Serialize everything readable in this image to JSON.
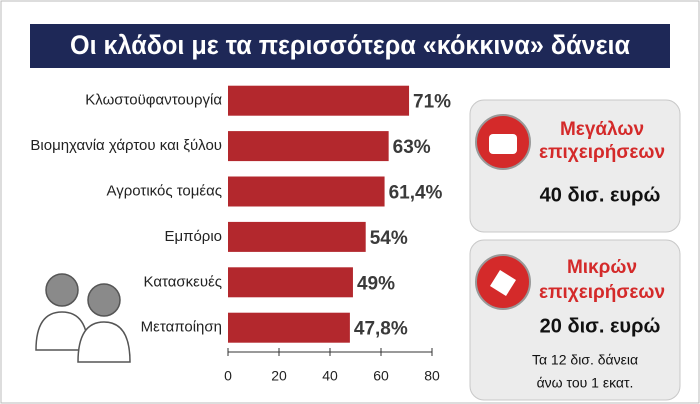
{
  "chart_data": {
    "type": "bar",
    "orientation": "horizontal",
    "title": "Οι κλάδοι με τα περισσότερα «κόκκινα» δάνεια",
    "categories": [
      "Κλωστοϋφαντουργία",
      "Βιομηχανία χάρτου και ξύλου",
      "Αγροτικός τομέας",
      "Εμπόριο",
      "Κατασκευές",
      "Μεταποίηση"
    ],
    "values": [
      71,
      63,
      61.4,
      54,
      49,
      47.8
    ],
    "value_labels": [
      "71%",
      "63%",
      "61,4%",
      "54%",
      "49%",
      "47,8%"
    ],
    "color": "#b3282d",
    "xlim": [
      0,
      80
    ],
    "xticks": [
      0,
      20,
      40,
      60,
      80
    ]
  },
  "panels": [
    {
      "title_lines": [
        "Μεγάλων",
        "επιχειρήσεων"
      ],
      "amount": "40 δισ. ευρώ"
    },
    {
      "title_lines": [
        "Μικρών",
        "επιχειρήσεων"
      ],
      "amount": "20 δισ. ευρώ",
      "note_lines": [
        "Τα 12 δισ. δάνεια",
        "άνω του 1 εκατ."
      ]
    }
  ]
}
